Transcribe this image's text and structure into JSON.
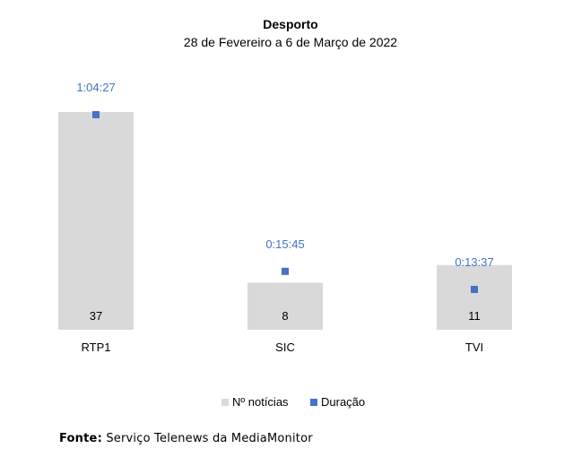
{
  "chart_data": {
    "type": "bar",
    "title": "Desporto",
    "subtitle": "28 de Fevereiro a 6 de Março de 2022",
    "categories": [
      "RTP1",
      "SIC",
      "TVI"
    ],
    "series": [
      {
        "name": "Nº notícias",
        "kind": "bar",
        "color": "#d9d9d9",
        "values": [
          37,
          8,
          11
        ],
        "labels": [
          "37",
          "8",
          "11"
        ]
      },
      {
        "name": "Duração",
        "kind": "marker",
        "color": "#4472c4",
        "values_seconds": [
          3867,
          945,
          817
        ],
        "labels": [
          "1:04:27",
          "0:15:45",
          "0:13:37"
        ]
      }
    ],
    "bar_ylim": [
      0,
      37
    ],
    "duration_ylim_seconds": [
      0,
      3867
    ],
    "grid": false,
    "legend_position": "bottom"
  },
  "source": {
    "label": "Fonte:",
    "text": "Serviço Telenews da MediaMonitor"
  }
}
